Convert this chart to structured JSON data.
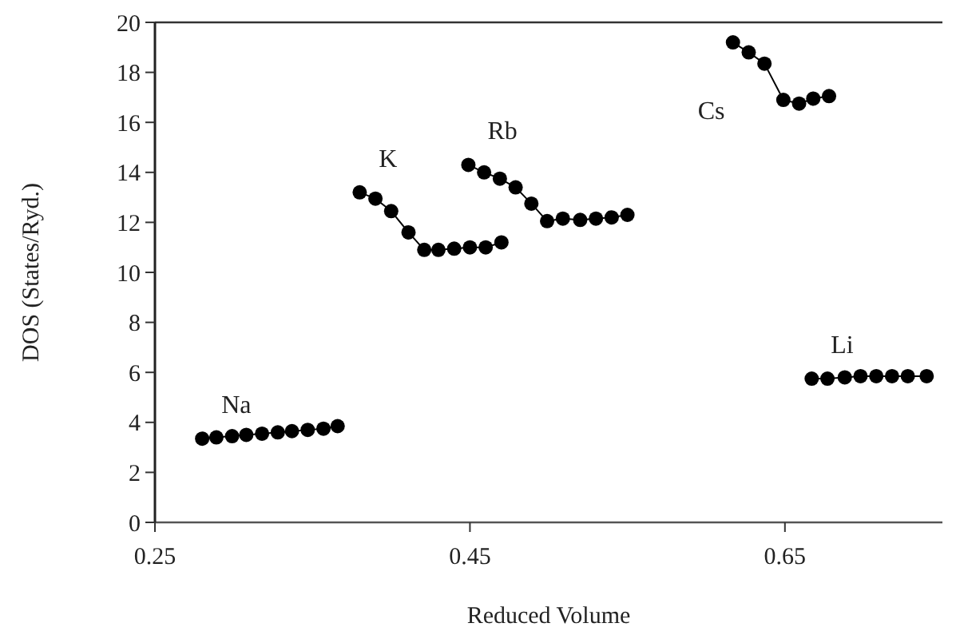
{
  "chart_data": {
    "type": "line",
    "xlabel": "Reduced Volume",
    "ylabel": "DOS (States/Ryd.)",
    "xlim": [
      0.25,
      0.75
    ],
    "xticks": [
      0.25,
      0.45,
      0.65
    ],
    "ylim": [
      0,
      20
    ],
    "yticks": [
      0,
      2,
      4,
      6,
      8,
      10,
      12,
      14,
      16,
      18,
      20
    ],
    "grid": false,
    "marker": "circle",
    "line_style": "solid",
    "series": [
      {
        "name": "Na",
        "color": "#000000",
        "x": [
          0.28,
          0.289,
          0.299,
          0.308,
          0.318,
          0.328,
          0.337,
          0.347,
          0.357,
          0.366
        ],
        "values": [
          3.35,
          3.4,
          3.45,
          3.5,
          3.55,
          3.6,
          3.65,
          3.7,
          3.75,
          3.85
        ]
      },
      {
        "name": "K",
        "color": "#000000",
        "x": [
          0.38,
          0.39,
          0.4,
          0.411,
          0.421,
          0.43,
          0.44,
          0.45,
          0.46,
          0.47
        ],
        "values": [
          13.2,
          12.95,
          12.45,
          11.6,
          10.9,
          10.9,
          10.95,
          11.0,
          11.0,
          11.2
        ]
      },
      {
        "name": "Rb",
        "color": "#000000",
        "x": [
          0.449,
          0.459,
          0.469,
          0.479,
          0.489,
          0.499,
          0.509,
          0.52,
          0.53,
          0.54,
          0.55
        ],
        "values": [
          14.3,
          14.0,
          13.75,
          13.4,
          12.75,
          12.05,
          12.15,
          12.1,
          12.15,
          12.2,
          12.3
        ]
      },
      {
        "name": "Cs",
        "color": "#000000",
        "x": [
          0.617,
          0.627,
          0.637,
          0.649,
          0.659,
          0.668,
          0.678
        ],
        "values": [
          19.2,
          18.8,
          18.35,
          16.9,
          16.75,
          16.95,
          17.05
        ]
      },
      {
        "name": "Li",
        "color": "#000000",
        "x": [
          0.667,
          0.677,
          0.688,
          0.698,
          0.708,
          0.718,
          0.728,
          0.74
        ],
        "values": [
          5.75,
          5.75,
          5.8,
          5.85,
          5.85,
          5.85,
          5.85,
          5.85
        ]
      }
    ]
  }
}
